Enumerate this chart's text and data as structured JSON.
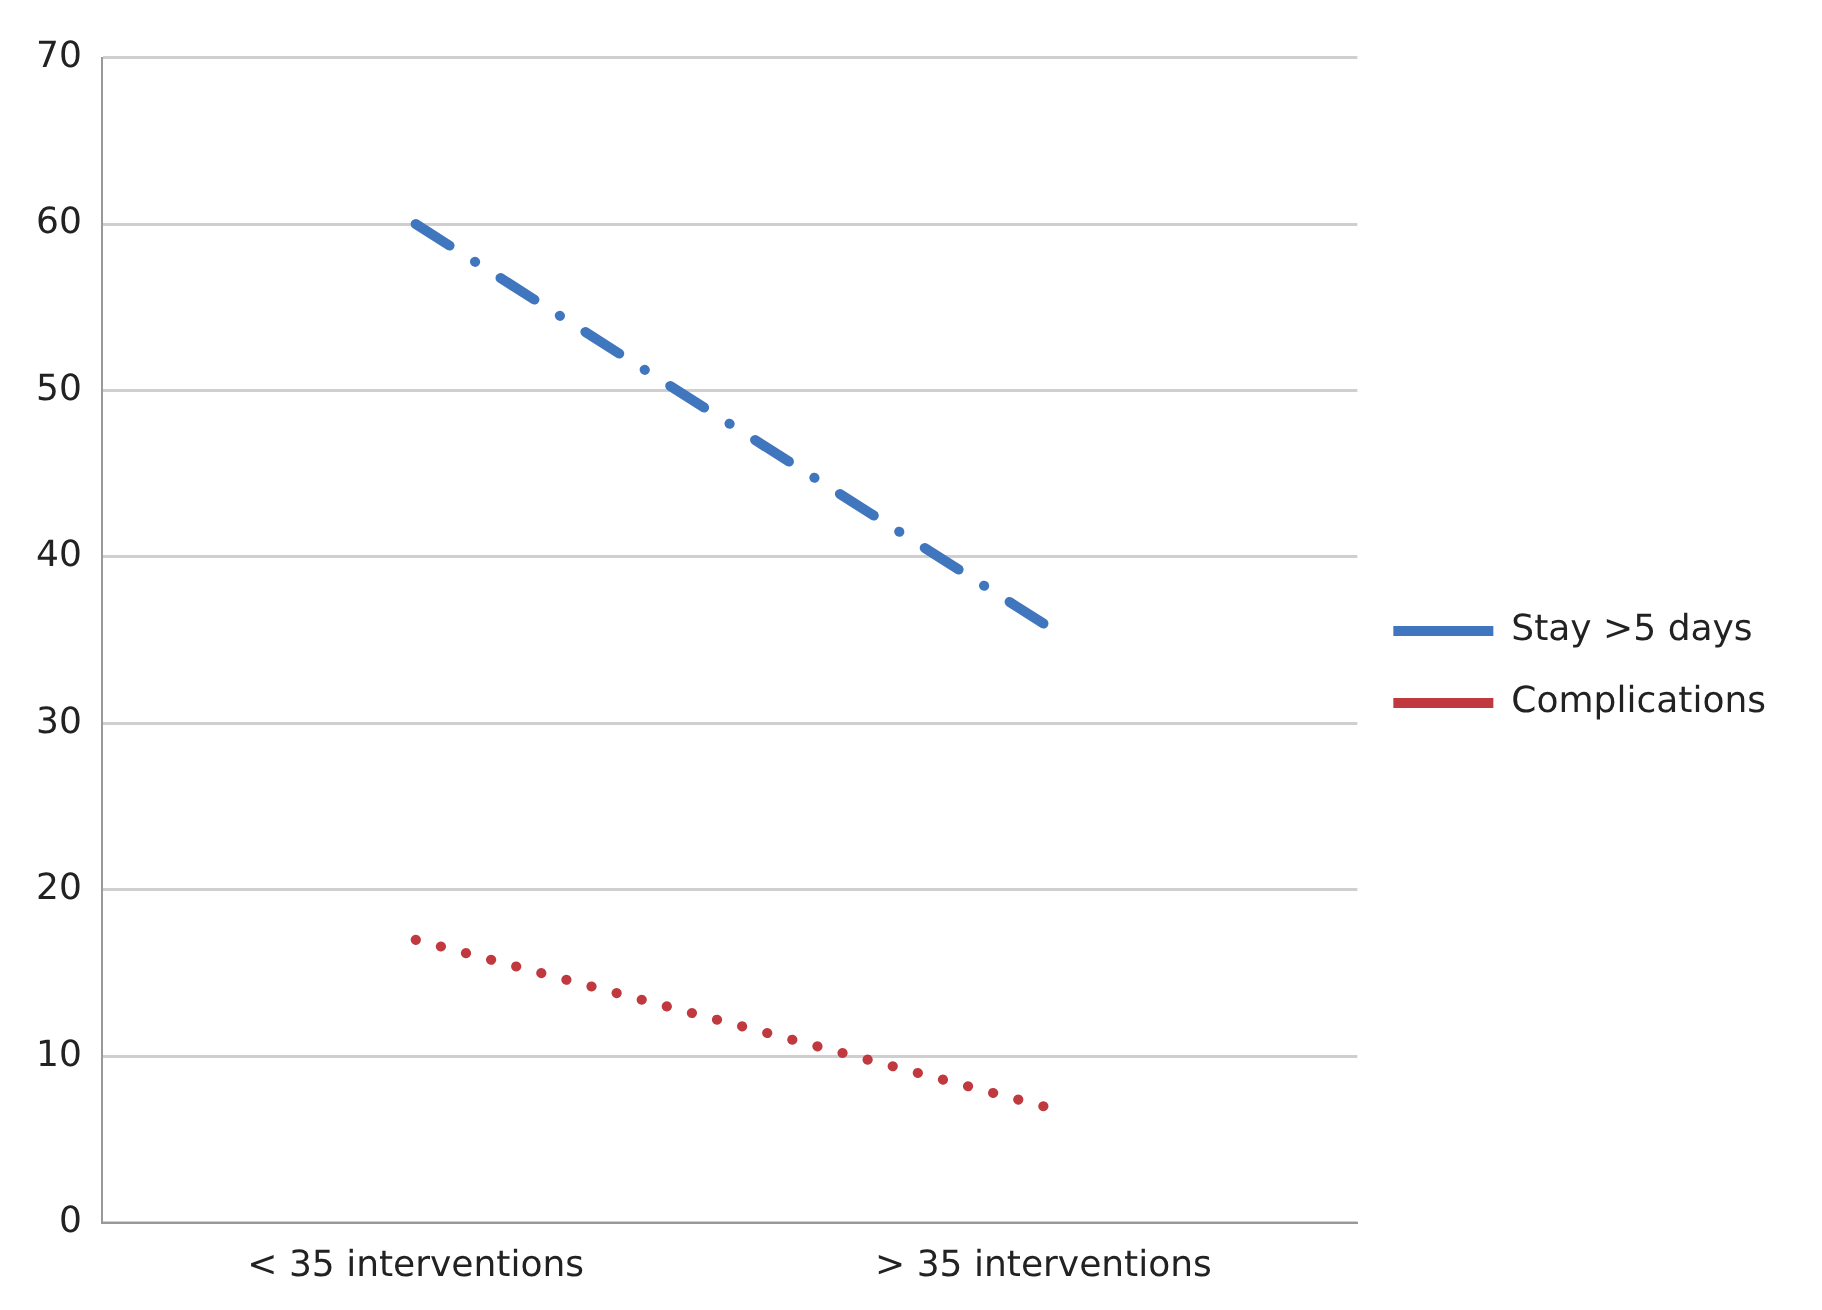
{
  "chart_data": {
    "type": "line",
    "categories": [
      "< 35 interventions",
      "> 35 interventions"
    ],
    "series": [
      {
        "name": "Stay >5 days",
        "color": "#3f76bd",
        "values": [
          60,
          36
        ],
        "line_style": "dashed"
      },
      {
        "name": "Complications",
        "color": "#c0393f",
        "values": [
          17,
          7
        ],
        "line_style": "dotted"
      }
    ],
    "ylim": [
      0,
      70
    ],
    "yticks": [
      0,
      10,
      20,
      30,
      40,
      50,
      60,
      70
    ],
    "grid": "y",
    "legend": "right",
    "marker": "none"
  }
}
